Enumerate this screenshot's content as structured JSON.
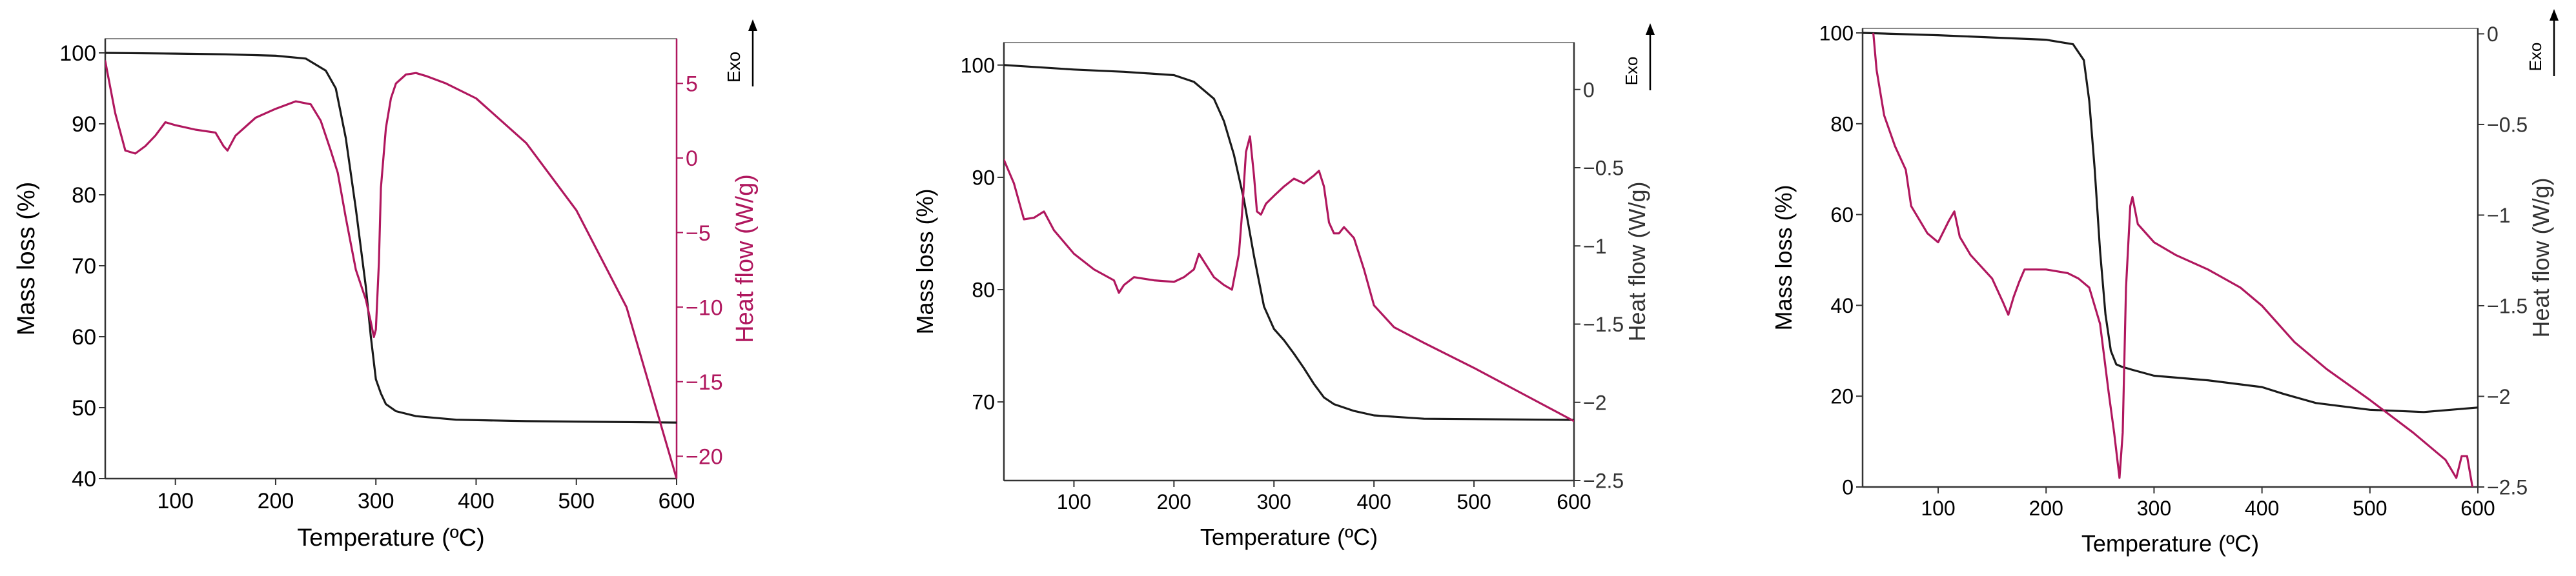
{
  "colors": {
    "mass": "#1a1a1a",
    "heat": "#b0175e",
    "axis": "#333333",
    "frame": "#888888"
  },
  "chart_data": [
    {
      "type": "line",
      "xlabel": "Temperature (ºC)",
      "ylabel": "Mass loss (%)",
      "y2label": "Heat flow (W/g)",
      "exo_label": "Exo",
      "xlim": [
        30,
        600
      ],
      "ylim": [
        40,
        102
      ],
      "y2lim": [
        -21.5,
        8
      ],
      "xticks": [
        100,
        200,
        300,
        400,
        500,
        600
      ],
      "yticks": [
        40,
        50,
        60,
        70,
        80,
        90,
        100
      ],
      "y2ticks": [
        -20,
        -15,
        -10,
        -5,
        0,
        5
      ],
      "y2_colored": true,
      "series": [
        {
          "name": "Mass loss",
          "axis": "left",
          "x": [
            30,
            100,
            150,
            200,
            230,
            250,
            260,
            270,
            280,
            290,
            295,
            300,
            305,
            310,
            320,
            340,
            380,
            450,
            600
          ],
          "y": [
            100,
            99.9,
            99.8,
            99.6,
            99.2,
            97.5,
            95,
            88,
            78,
            67,
            60,
            54,
            52,
            50.5,
            49.5,
            48.8,
            48.3,
            48.1,
            47.9
          ]
        },
        {
          "name": "Heat flow",
          "axis": "right",
          "x": [
            30,
            40,
            50,
            60,
            70,
            80,
            90,
            100,
            120,
            140,
            148,
            152,
            160,
            180,
            200,
            220,
            235,
            245,
            255,
            262,
            270,
            280,
            290,
            295,
            298,
            300,
            303,
            305,
            310,
            315,
            320,
            330,
            340,
            350,
            370,
            400,
            450,
            500,
            550,
            600
          ],
          "y": [
            6.5,
            3,
            0.5,
            0.3,
            0.8,
            1.5,
            2.4,
            2.2,
            1.9,
            1.7,
            0.8,
            0.5,
            1.5,
            2.7,
            3.3,
            3.8,
            3.6,
            2.5,
            0.5,
            -1,
            -4,
            -7.5,
            -9.5,
            -11,
            -12,
            -11.5,
            -7,
            -2,
            2,
            4,
            5,
            5.6,
            5.7,
            5.5,
            5,
            4,
            1,
            -3.5,
            -10,
            -21.5
          ]
        }
      ]
    },
    {
      "type": "line",
      "xlabel": "Temperature (ºC)",
      "ylabel": "Mass loss (%)",
      "y2label": "Heat flow (W/g)",
      "exo_label": "Exo",
      "xlim": [
        30,
        600
      ],
      "ylim": [
        63,
        102
      ],
      "y2lim": [
        -2.5,
        0.3
      ],
      "xticks": [
        100,
        200,
        300,
        400,
        500,
        600
      ],
      "yticks": [
        70,
        80,
        90,
        100
      ],
      "y2ticks": [
        -2.5,
        -2.0,
        -1.5,
        -1.0,
        -0.5,
        0.0
      ],
      "y2_colored": false,
      "series": [
        {
          "name": "Mass loss",
          "axis": "left",
          "x": [
            30,
            100,
            150,
            200,
            220,
            240,
            250,
            260,
            270,
            280,
            290,
            300,
            310,
            320,
            330,
            340,
            350,
            360,
            380,
            400,
            450,
            600
          ],
          "y": [
            100,
            99.6,
            99.4,
            99.1,
            98.5,
            97,
            95,
            92,
            88,
            83,
            78.5,
            76.5,
            75.5,
            74.3,
            73,
            71.6,
            70.4,
            69.8,
            69.2,
            68.8,
            68.5,
            68.4
          ]
        },
        {
          "name": "Heat flow",
          "axis": "right",
          "x": [
            30,
            40,
            50,
            60,
            70,
            80,
            100,
            120,
            140,
            145,
            150,
            160,
            180,
            200,
            210,
            220,
            225,
            230,
            240,
            250,
            258,
            262,
            265,
            268,
            272,
            276,
            280,
            283,
            287,
            292,
            300,
            310,
            320,
            330,
            340,
            345,
            350,
            355,
            360,
            365,
            370,
            380,
            390,
            400,
            420,
            450,
            500,
            550,
            600
          ],
          "y": [
            -0.45,
            -0.6,
            -0.83,
            -0.82,
            -0.78,
            -0.9,
            -1.05,
            -1.15,
            -1.22,
            -1.3,
            -1.25,
            -1.2,
            -1.22,
            -1.23,
            -1.2,
            -1.15,
            -1.05,
            -1.1,
            -1.2,
            -1.25,
            -1.28,
            -1.15,
            -1.05,
            -0.8,
            -0.4,
            -0.3,
            -0.55,
            -0.78,
            -0.8,
            -0.73,
            -0.68,
            -0.62,
            -0.57,
            -0.6,
            -0.55,
            -0.52,
            -0.62,
            -0.85,
            -0.92,
            -0.92,
            -0.88,
            -0.95,
            -1.15,
            -1.38,
            -1.52,
            -1.62,
            -1.78,
            -1.95,
            -2.12
          ]
        }
      ]
    },
    {
      "type": "line",
      "xlabel": "Temperature (ºC)",
      "ylabel": "Mass loss (%)",
      "y2label": "Heat flow (W/g)",
      "exo_label": "Exo",
      "xlim": [
        30,
        600
      ],
      "ylim": [
        0,
        101
      ],
      "y2lim": [
        -2.5,
        0.03
      ],
      "xticks": [
        100,
        200,
        300,
        400,
        500,
        600
      ],
      "yticks": [
        0,
        20,
        40,
        60,
        80,
        100
      ],
      "y2ticks": [
        -2.5,
        -2.0,
        -1.5,
        -1.0,
        -0.5,
        0.0
      ],
      "y2_colored": false,
      "series": [
        {
          "name": "Mass loss",
          "axis": "left",
          "x": [
            30,
            100,
            150,
            200,
            225,
            235,
            240,
            245,
            250,
            255,
            260,
            265,
            270,
            280,
            300,
            350,
            400,
            420,
            450,
            500,
            550,
            600
          ],
          "y": [
            100,
            99.5,
            99,
            98.5,
            97.5,
            94,
            85,
            70,
            52,
            38,
            30,
            27,
            26.5,
            25.8,
            24.5,
            23.5,
            22,
            20.5,
            18.5,
            17,
            16.5,
            17.5
          ]
        },
        {
          "name": "Heat flow",
          "axis": "right",
          "x": [
            40,
            43,
            50,
            60,
            70,
            75,
            90,
            100,
            110,
            115,
            120,
            130,
            150,
            160,
            165,
            170,
            175,
            180,
            200,
            220,
            230,
            240,
            250,
            258,
            263,
            268,
            271,
            274,
            278,
            280,
            285,
            300,
            320,
            350,
            380,
            400,
            430,
            460,
            500,
            540,
            570,
            580,
            585,
            590,
            595
          ],
          "y": [
            0,
            -0.2,
            -0.45,
            -0.62,
            -0.75,
            -0.95,
            -1.1,
            -1.15,
            -1.03,
            -0.98,
            -1.12,
            -1.22,
            -1.35,
            -1.48,
            -1.55,
            -1.45,
            -1.37,
            -1.3,
            -1.3,
            -1.32,
            -1.35,
            -1.4,
            -1.6,
            -1.98,
            -2.2,
            -2.45,
            -2.2,
            -1.4,
            -0.95,
            -0.9,
            -1.05,
            -1.15,
            -1.22,
            -1.3,
            -1.4,
            -1.5,
            -1.7,
            -1.85,
            -2.02,
            -2.2,
            -2.35,
            -2.45,
            -2.33,
            -2.33,
            -2.5
          ]
        }
      ]
    }
  ]
}
